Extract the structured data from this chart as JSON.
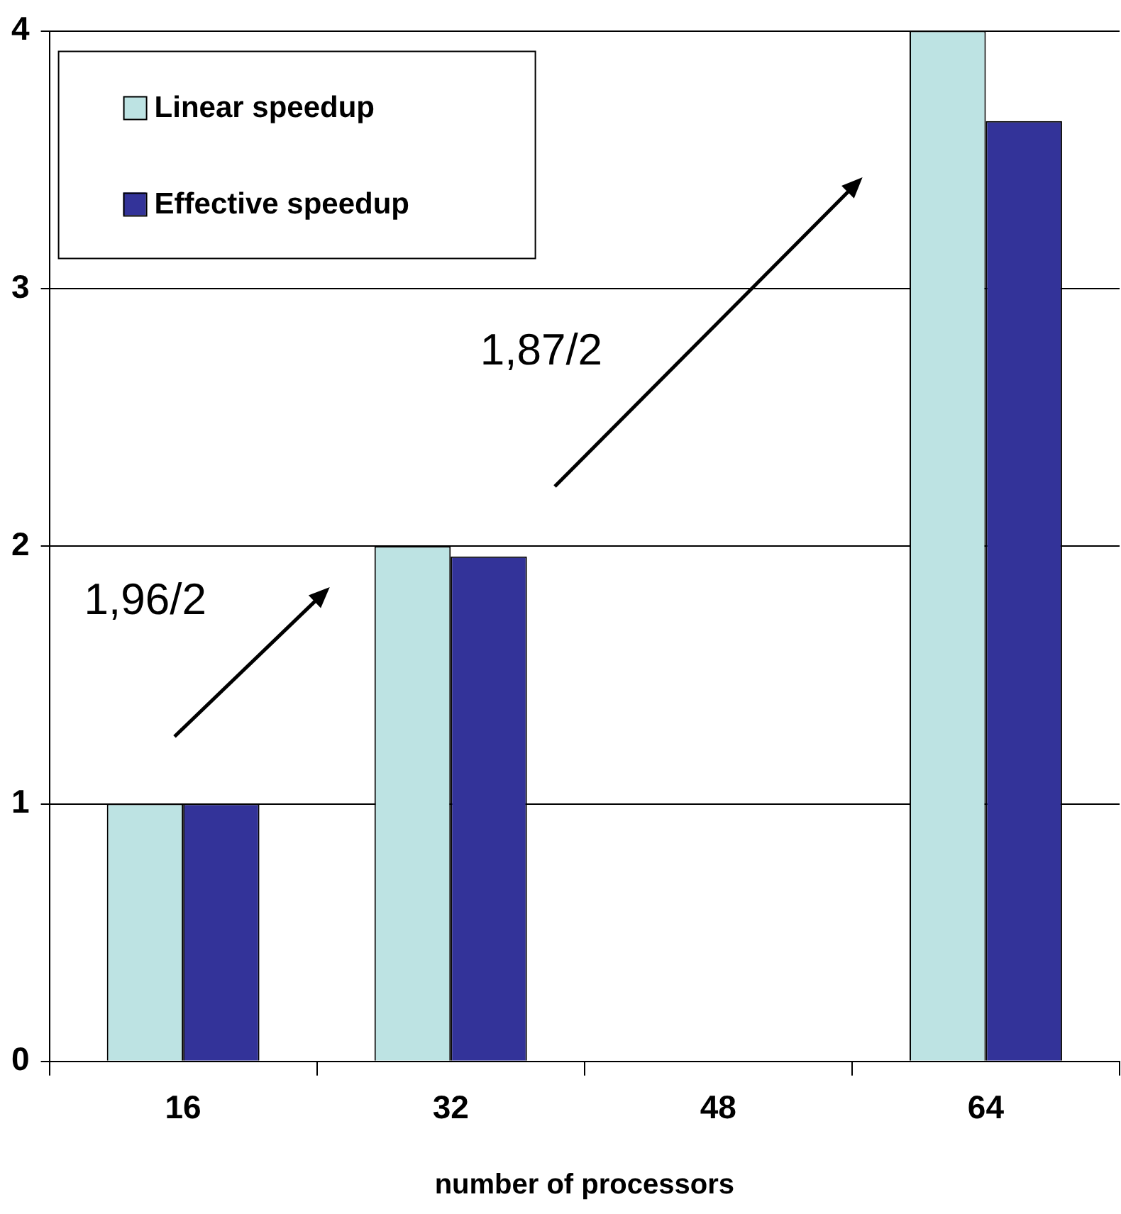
{
  "chart_data": {
    "type": "bar",
    "xlabel": "number of processors",
    "categories": [
      "16",
      "32",
      "48",
      "64"
    ],
    "series": [
      {
        "name": "Linear speedup",
        "color": "#bde3e3",
        "values": [
          1,
          2,
          null,
          4
        ]
      },
      {
        "name": "Effective speedup",
        "color": "#333399",
        "values": [
          1,
          1.96,
          null,
          3.65
        ]
      }
    ],
    "ylim": [
      0,
      4
    ],
    "yticks": [
      0,
      1,
      2,
      3,
      4
    ],
    "grid": "y",
    "legend": "top left",
    "annotations": [
      "1,96/2",
      "1,87/2"
    ]
  }
}
